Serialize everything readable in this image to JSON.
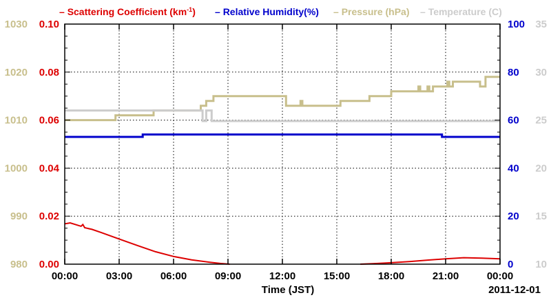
{
  "chart_data": {
    "type": "line",
    "xlabel": "Time (JST)",
    "x_ticks": [
      "00:00",
      "03:00",
      "06:00",
      "09:00",
      "12:00",
      "15:00",
      "18:00",
      "21:00",
      "00:00"
    ],
    "x_range_hours": [
      0,
      24
    ],
    "date_label": "2011-12-01",
    "grid": true,
    "legend": [
      {
        "text": "Scattering Coefficient (km",
        "sup": "-1",
        "tail": ")",
        "color": "#dd0000"
      },
      {
        "text": "Relative Humidity(%)",
        "color": "#0000cc"
      },
      {
        "text": "Pressure (hPa)",
        "color": "#c8bf8c"
      },
      {
        "text": "Temperature (C)",
        "color": "#cccccc"
      }
    ],
    "axes": {
      "pressure": {
        "side": "left-outer",
        "min": 980,
        "max": 1030,
        "ticks": [
          "980",
          "990",
          "1000",
          "1010",
          "1020",
          "1030"
        ],
        "color": "#c8bf8c"
      },
      "scattering": {
        "side": "left-inner",
        "min": 0,
        "max": 0.1,
        "ticks": [
          "0.00",
          "0.02",
          "0.04",
          "0.06",
          "0.08",
          "0.10"
        ],
        "color": "#dd0000"
      },
      "humidity": {
        "side": "right-inner",
        "min": 0,
        "max": 100,
        "ticks": [
          "0",
          "20",
          "40",
          "60",
          "80",
          "100"
        ],
        "color": "#0000cc"
      },
      "temperature": {
        "side": "right-outer",
        "min": 10,
        "max": 35,
        "ticks": [
          "10",
          "15",
          "20",
          "25",
          "30",
          "35"
        ],
        "color": "#cccccc"
      }
    },
    "series": [
      {
        "name": "Pressure (hPa)",
        "axis": "pressure",
        "step": true,
        "x": [
          0,
          2.8,
          4.9,
          7.5,
          7.8,
          8.2,
          12.2,
          13.0,
          13.1,
          15.2,
          16.8,
          18.0,
          19.5,
          19.6,
          20.0,
          20.1,
          20.3,
          21.0,
          21.1,
          21.2,
          21.4,
          22.8,
          22.9,
          23.2,
          24
        ],
        "y": [
          1010,
          1011,
          1012,
          1013,
          1014,
          1015,
          1013,
          1014,
          1013,
          1014,
          1015,
          1016,
          1017,
          1016,
          1017,
          1016,
          1017,
          1017,
          1018,
          1017,
          1018,
          1018,
          1017,
          1019,
          1019
        ]
      },
      {
        "name": "Relative Humidity(%)",
        "axis": "humidity",
        "step": true,
        "x": [
          0,
          4.3,
          20.8,
          24
        ],
        "y": [
          53,
          54,
          53,
          53
        ]
      },
      {
        "name": "Temperature (C)",
        "axis": "temperature",
        "step": true,
        "x": [
          0,
          7.6,
          7.8,
          8.1,
          8.2,
          24
        ],
        "y": [
          26,
          24.9,
          26,
          24.9,
          24.9,
          24.9
        ]
      },
      {
        "name": "Scattering Coefficient (km-1)",
        "axis": "scattering",
        "step": false,
        "x": [
          0,
          0.3,
          0.9,
          1.0,
          1.1,
          1.5,
          2.0,
          3.0,
          4.0,
          5.0,
          6.0,
          7.0,
          8.0,
          8.6,
          9.1
        ],
        "y": [
          0.0168,
          0.0172,
          0.0158,
          0.0165,
          0.0152,
          0.0145,
          0.0132,
          0.0105,
          0.0078,
          0.0052,
          0.0032,
          0.0018,
          0.0008,
          0.0003,
          0.0
        ],
        "x2": [
          16.3,
          17.0,
          18.0,
          19.0,
          20.0,
          21.0,
          22.0,
          23.0,
          24.0
        ],
        "y2": [
          0.0,
          0.0002,
          0.0006,
          0.0011,
          0.0017,
          0.0022,
          0.0027,
          0.0025,
          0.0022
        ]
      }
    ]
  }
}
